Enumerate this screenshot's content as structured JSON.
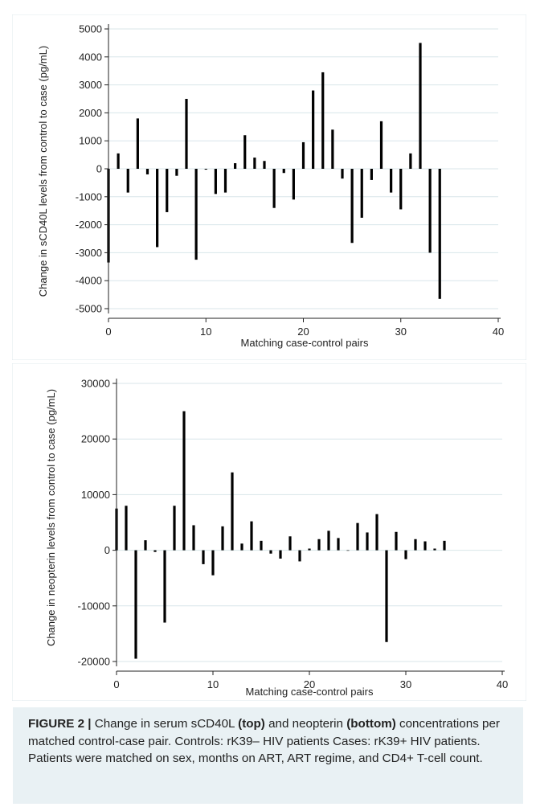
{
  "charts": {
    "accent_color": "#8fb8c8",
    "bar_color": "#000000",
    "grid_color": "#d8e6ea"
  },
  "chart_data": [
    {
      "type": "bar",
      "title": "",
      "xlabel": "Matching case-control pairs",
      "ylabel": "Change in sCD40L levels from control to case (pg/mL)",
      "xlim": [
        0,
        40
      ],
      "ylim": [
        -5000,
        5000
      ],
      "xticks": [
        0,
        10,
        20,
        30,
        40
      ],
      "yticks": [
        -5000,
        -4000,
        -3000,
        -2000,
        -1000,
        0,
        1000,
        2000,
        3000,
        4000,
        5000
      ],
      "grid": true,
      "x": [
        0,
        1,
        2,
        3,
        4,
        5,
        6,
        7,
        8,
        9,
        10,
        11,
        12,
        13,
        14,
        15,
        16,
        17,
        18,
        19,
        20,
        21,
        22,
        23,
        24,
        25,
        26,
        27,
        28,
        29,
        30,
        31,
        32,
        33,
        34
      ],
      "values": [
        -3350,
        550,
        -850,
        1800,
        -200,
        -2800,
        -1550,
        -250,
        2500,
        -3250,
        -30,
        -900,
        -850,
        200,
        1200,
        400,
        280,
        -1400,
        -150,
        -1100,
        950,
        2800,
        3450,
        1400,
        -350,
        -2650,
        -1750,
        -400,
        1700,
        -850,
        -1450,
        550,
        4500,
        -3000,
        -4650
      ]
    },
    {
      "type": "bar",
      "title": "",
      "xlabel": "Matching case-control pairs",
      "ylabel": "Change in neopterin levels from control to case (pg/mL)",
      "xlim": [
        0,
        40
      ],
      "ylim": [
        -20000,
        30000
      ],
      "xticks": [
        0,
        10,
        20,
        30,
        40
      ],
      "yticks": [
        -20000,
        -10000,
        0,
        10000,
        20000,
        30000
      ],
      "grid": true,
      "x": [
        0,
        1,
        2,
        3,
        4,
        5,
        6,
        7,
        8,
        9,
        10,
        11,
        12,
        13,
        14,
        15,
        16,
        17,
        18,
        19,
        20,
        21,
        22,
        23,
        24,
        25,
        26,
        27,
        28,
        29,
        30,
        31,
        32,
        33,
        34
      ],
      "values": [
        7500,
        8000,
        -19500,
        1800,
        -300,
        -13000,
        8000,
        25000,
        4500,
        -2500,
        -4500,
        4300,
        14000,
        1200,
        5200,
        1700,
        -600,
        -1500,
        2500,
        -2000,
        300,
        2000,
        3500,
        2200,
        0,
        4900,
        3200,
        6500,
        -16500,
        3300,
        -1600,
        2000,
        1600,
        300,
        1700
      ]
    }
  ],
  "caption": {
    "figure_label": "FIGURE 2 |",
    "part1": " Change in serum sCD40L ",
    "top_word": "(top)",
    "part2": " and neopterin ",
    "bottom_word": "(bottom)",
    "part3": " concentrations per matched control-case pair. Controls: rK39– HIV patients Cases: rK39+ HIV patients. Patients were matched on sex, months on ART, ART regime, and CD4+ T-cell count."
  }
}
